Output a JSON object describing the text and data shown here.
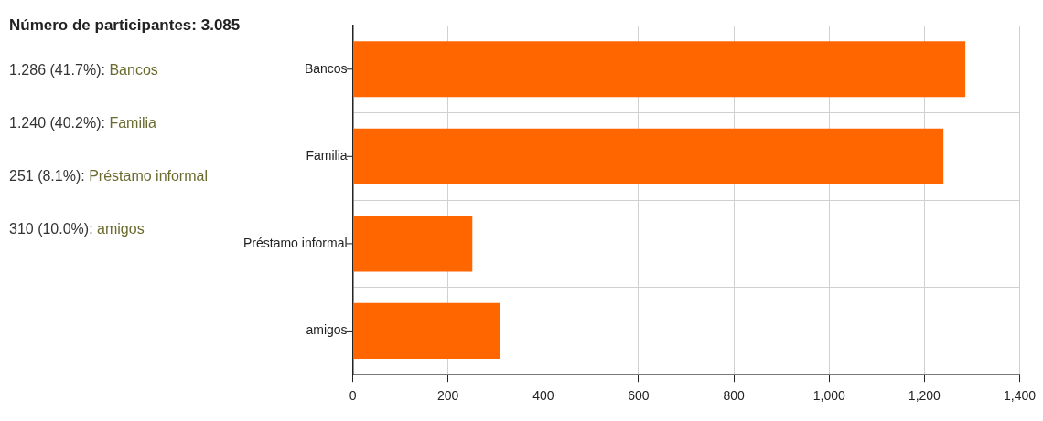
{
  "chart_data": {
    "type": "bar",
    "orientation": "horizontal",
    "title": "Número de participantes: 3.085",
    "annotations": [
      "1.286 (41.7%): Bancos",
      "1.240 (40.2%): Familia",
      "251 (8.1%): Préstamo informal",
      "310 (10.0%): amigos"
    ],
    "categories": [
      "Bancos",
      "Familia",
      "Préstamo informal",
      "amigos"
    ],
    "values": [
      1286,
      1240,
      251,
      310
    ],
    "color": "#ff6600",
    "xlim": [
      0,
      1400
    ],
    "xticks": [
      0,
      200,
      400,
      600,
      800,
      {
        "value": 1000,
        "label": "1,000"
      },
      {
        "value": 1200,
        "label": "1,200"
      },
      {
        "value": 1400,
        "label": "1,400"
      }
    ],
    "grid": true,
    "legend": false
  }
}
